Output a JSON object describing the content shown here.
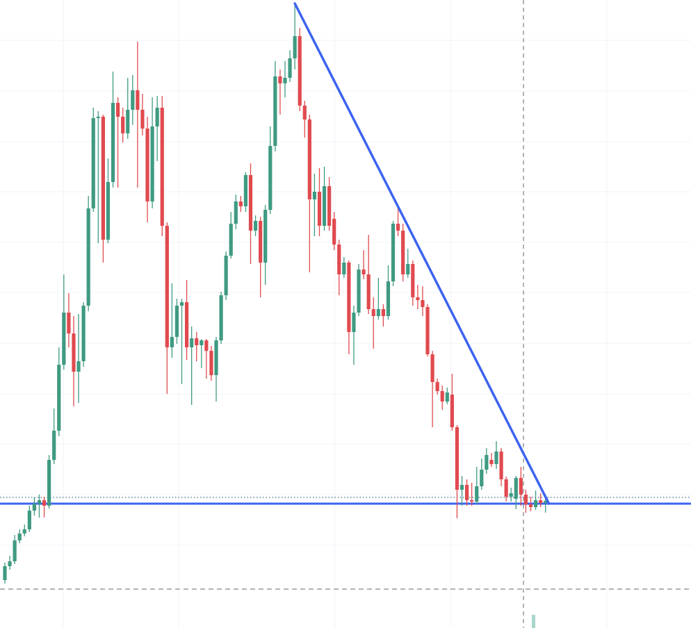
{
  "chart_data": {
    "type": "candlestick",
    "ylim": [
      0,
      904
    ],
    "up_color": "#3f9a82",
    "down_color": "#e04a4f",
    "open": [
      69,
      89,
      96,
      126,
      136,
      142,
      169,
      179,
      184,
      176,
      242,
      284,
      379,
      454,
      424,
      369,
      384,
      464,
      604,
      734,
      736,
      559,
      642,
      756,
      736,
      712,
      746,
      774,
      746,
      719,
      614,
      722,
      749,
      579,
      404,
      419,
      464,
      469,
      404,
      417,
      407,
      414,
      399,
      364,
      414,
      479,
      536,
      582,
      614,
      607,
      652,
      572,
      586,
      526,
      602,
      694,
      794,
      784,
      792,
      820,
      852,
      752,
      732,
      617,
      628,
      579,
      636,
      589,
      552,
      509,
      526,
      426,
      454,
      516,
      509,
      459,
      449,
      459,
      449,
      499,
      582,
      572,
      509,
      524,
      476,
      472,
      462,
      394,
      354,
      341,
      326,
      336,
      289,
      199,
      206,
      184,
      182,
      204,
      228,
      242,
      236,
      254,
      214,
      189,
      186,
      216,
      192,
      178,
      174,
      184,
      180
    ],
    "high": [
      94,
      104,
      134,
      142,
      149,
      176,
      188,
      192,
      189,
      249,
      316,
      404,
      509,
      482,
      449,
      452,
      469,
      622,
      749,
      744,
      739,
      676,
      801,
      764,
      749,
      792,
      796,
      844,
      769,
      736,
      764,
      766,
      766,
      584,
      496,
      474,
      474,
      501,
      434,
      426,
      416,
      416,
      406,
      419,
      484,
      542,
      599,
      624,
      622,
      656,
      669,
      594,
      592,
      609,
      722,
      816,
      804,
      816,
      832,
      899,
      864,
      759,
      739,
      654,
      662,
      664,
      649,
      599,
      559,
      534,
      529,
      464,
      524,
      544,
      566,
      476,
      504,
      466,
      522,
      586,
      604,
      582,
      546,
      529,
      494,
      492,
      466,
      399,
      359,
      349,
      346,
      366,
      292,
      219,
      214,
      209,
      232,
      244,
      259,
      252,
      269,
      259,
      218,
      202,
      219,
      232,
      199,
      189,
      198,
      194,
      192
    ],
    "low": [
      64,
      84,
      92,
      122,
      132,
      138,
      162,
      159,
      159,
      172,
      236,
      276,
      372,
      404,
      319,
      324,
      376,
      456,
      599,
      554,
      526,
      554,
      634,
      634,
      699,
      704,
      724,
      634,
      709,
      584,
      604,
      672,
      564,
      337,
      389,
      409,
      351,
      386,
      321,
      384,
      374,
      359,
      356,
      326,
      409,
      472,
      532,
      574,
      599,
      599,
      524,
      564,
      476,
      494,
      596,
      686,
      739,
      764,
      786,
      804,
      744,
      706,
      512,
      564,
      564,
      572,
      572,
      544,
      479,
      504,
      394,
      379,
      449,
      502,
      452,
      402,
      444,
      434,
      444,
      492,
      564,
      499,
      504,
      464,
      459,
      449,
      391,
      289,
      336,
      314,
      322,
      284,
      158,
      176,
      176,
      176,
      178,
      199,
      222,
      232,
      229,
      204,
      182,
      182,
      171,
      176,
      166,
      168,
      170,
      174,
      166
    ],
    "close": [
      89,
      96,
      126,
      136,
      142,
      169,
      179,
      184,
      176,
      242,
      284,
      379,
      454,
      424,
      369,
      384,
      464,
      604,
      734,
      736,
      559,
      642,
      756,
      736,
      712,
      746,
      774,
      746,
      719,
      614,
      722,
      749,
      579,
      404,
      419,
      464,
      469,
      404,
      417,
      407,
      414,
      399,
      364,
      414,
      479,
      536,
      582,
      614,
      607,
      652,
      572,
      586,
      526,
      602,
      694,
      794,
      784,
      792,
      820,
      852,
      752,
      732,
      617,
      628,
      579,
      636,
      579,
      552,
      509,
      526,
      426,
      454,
      516,
      509,
      459,
      449,
      459,
      449,
      499,
      582,
      572,
      509,
      524,
      476,
      472,
      462,
      394,
      354,
      341,
      326,
      339,
      289,
      199,
      206,
      184,
      182,
      204,
      228,
      249,
      236,
      254,
      214,
      189,
      194,
      216,
      192,
      178,
      174,
      184,
      180,
      183
    ],
    "trendline": {
      "color": "#3d63f0",
      "start": [
        59,
        899
      ],
      "end": [
        110.7,
        179
      ]
    },
    "hlines": [
      {
        "value": 179,
        "color": "#3d63f0",
        "style": "solid"
      },
      {
        "value": 188,
        "color": "#5a7da8",
        "style": "dotted"
      },
      {
        "value": 56,
        "color": "#9a9a9a",
        "style": "dashed"
      }
    ]
  }
}
